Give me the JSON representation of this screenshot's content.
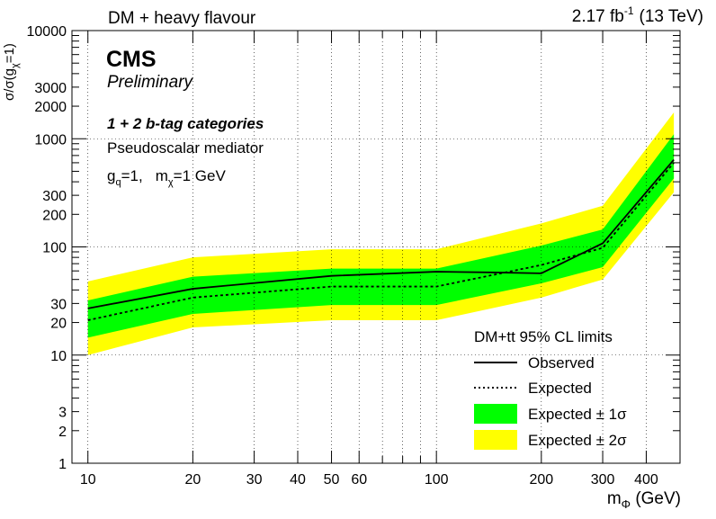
{
  "chart_data": {
    "type": "line",
    "title": "DM + heavy flavour",
    "lumi_label": "2.17 fb",
    "lumi_exponent": "-1",
    "energy_label": "(13 TeV)",
    "experiment": "CMS",
    "status": "Preliminary",
    "category_label": "1 + 2 b-tag categories",
    "mediator_label": "Pseudoscalar mediator",
    "coupling_label": {
      "gq_main": "g",
      "gq_sub": "q",
      "gq_val": "=1,",
      "mx_main": "m",
      "mx_sub": "χ",
      "mx_val": "=1 GeV"
    },
    "xlabel": {
      "main": "m",
      "sub": "Φ",
      "unit": " (GeV)"
    },
    "ylabel": {
      "prefix": "σ/σ(g",
      "sub": "χ",
      "suffix": "=1)"
    },
    "x_scale": "log",
    "y_scale": "log",
    "xlim": [
      9,
      500
    ],
    "ylim": [
      1,
      10000
    ],
    "grid": true,
    "x_ticks": [
      10,
      20,
      30,
      40,
      50,
      60,
      100,
      200,
      300,
      400
    ],
    "x_tick_labels": [
      "10",
      "20",
      "30",
      "40",
      "50",
      "60",
      "100",
      "200",
      "300",
      "400"
    ],
    "y_ticks": [
      1,
      2,
      3,
      10,
      20,
      30,
      100,
      200,
      300,
      1000,
      2000,
      3000,
      10000
    ],
    "y_tick_labels": [
      "1",
      "2",
      "3",
      "10",
      "20",
      "30",
      "100",
      "200",
      "300",
      "1000",
      "2000",
      "3000",
      "10000"
    ],
    "legend": {
      "title": "DM+tt   95% CL limits",
      "position": "bottom-right",
      "entries": [
        "Observed",
        "Expected",
        "Expected ± 1σ",
        "Expected ± 2σ"
      ]
    },
    "colors": {
      "band_2sigma": "#ffff00",
      "band_1sigma": "#00ff00",
      "line": "#000000"
    },
    "series": [
      {
        "name": "Observed",
        "style": "solid",
        "x": [
          10,
          20,
          50,
          100,
          150,
          200,
          300,
          480
        ],
        "y": [
          27,
          41,
          54,
          59,
          58,
          57,
          108,
          640
        ]
      },
      {
        "name": "Expected",
        "style": "dotted",
        "x": [
          10,
          20,
          50,
          100,
          200,
          300,
          480
        ],
        "y": [
          21,
          34,
          43,
          43,
          68,
          98,
          600
        ]
      },
      {
        "name": "Expected ± 1σ",
        "x": [
          10,
          20,
          50,
          100,
          200,
          300,
          480
        ],
        "y_low": [
          14.5,
          24,
          29,
          29,
          46,
          65,
          430
        ],
        "y_high": [
          32,
          53,
          63,
          63,
          103,
          145,
          1100
        ]
      },
      {
        "name": "Expected ± 2σ",
        "x": [
          10,
          20,
          50,
          100,
          200,
          300,
          480
        ],
        "y_low": [
          10,
          18,
          21,
          21,
          34,
          50,
          320
        ],
        "y_high": [
          48,
          80,
          95,
          95,
          165,
          240,
          1750
        ]
      }
    ]
  }
}
